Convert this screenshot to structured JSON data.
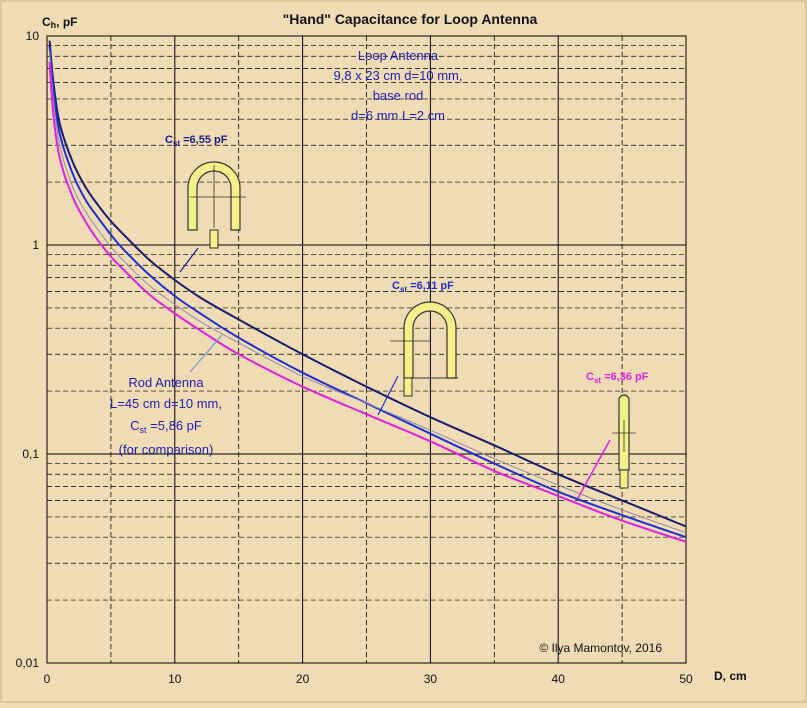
{
  "colors": {
    "background": "#f0dcb4",
    "grid_major": "#000000",
    "grid_minor": "#000000",
    "loop_dark": "#1a1a6e",
    "loop_blue": "#1f2fd0",
    "rod_gray": "#8a8aa8",
    "rod_magenta": "#e020e0",
    "antenna_fill": "#f4ef88",
    "antenna_stroke": "#333333",
    "text_blue": "#2020b0",
    "text_dark": "#111111"
  },
  "chart_data": {
    "type": "line",
    "title": "\"Hand\" Capacitance for  Loop Antenna",
    "ylabel_main": "C",
    "ylabel_sub": "h",
    "ylabel_unit": ", pF",
    "xlabel": "D, cm",
    "xlim": [
      0,
      50
    ],
    "ylim": [
      0.01,
      10
    ],
    "yscale": "log",
    "grid": true,
    "x_ticks": [
      "0",
      "10",
      "20",
      "30",
      "40",
      "50"
    ],
    "x_tick_values": [
      0,
      10,
      20,
      30,
      40,
      50
    ],
    "y_ticks": [
      "0,01",
      "0,1",
      "1",
      "10"
    ],
    "y_tick_values": [
      0.01,
      0.1,
      1,
      10
    ],
    "series": [
      {
        "key": "loop_6_55",
        "color": "#1a1a6e",
        "x": [
          0.2,
          0.5,
          1,
          2,
          3,
          4,
          5,
          6,
          8,
          10,
          12,
          15,
          20,
          25,
          30,
          35,
          40,
          45,
          50
        ],
        "values": [
          9.5,
          6.0,
          3.8,
          2.5,
          1.9,
          1.55,
          1.3,
          1.12,
          0.85,
          0.68,
          0.56,
          0.44,
          0.3,
          0.21,
          0.15,
          0.11,
          0.08,
          0.06,
          0.045
        ]
      },
      {
        "key": "loop_6_11",
        "color": "#1f2fd0",
        "x": [
          0.2,
          0.5,
          1,
          2,
          3,
          4,
          5,
          6,
          8,
          10,
          12,
          15,
          20,
          25,
          30,
          35,
          40,
          45,
          50
        ],
        "values": [
          9.0,
          5.5,
          3.4,
          2.2,
          1.65,
          1.35,
          1.12,
          0.95,
          0.72,
          0.57,
          0.47,
          0.36,
          0.245,
          0.175,
          0.125,
          0.09,
          0.066,
          0.051,
          0.04
        ]
      },
      {
        "key": "rod_thin",
        "color": "#8a8aa8",
        "x": [
          0.2,
          0.5,
          1,
          2,
          3,
          4,
          5,
          6,
          8,
          10,
          12,
          15,
          20,
          25,
          30,
          35,
          40,
          45,
          50
        ],
        "values": [
          8.5,
          5.0,
          3.0,
          1.9,
          1.45,
          1.18,
          0.98,
          0.84,
          0.64,
          0.52,
          0.43,
          0.34,
          0.235,
          0.175,
          0.13,
          0.095,
          0.071,
          0.054,
          0.042
        ]
      },
      {
        "key": "loop_6_36",
        "color": "#e020e0",
        "x": [
          0.2,
          0.5,
          1,
          2,
          3,
          4,
          5,
          6,
          8,
          10,
          12,
          15,
          20,
          25,
          30,
          35,
          40,
          45,
          50
        ],
        "values": [
          7.5,
          4.2,
          2.6,
          1.7,
          1.3,
          1.05,
          0.88,
          0.76,
          0.58,
          0.47,
          0.39,
          0.3,
          0.21,
          0.155,
          0.115,
          0.083,
          0.063,
          0.048,
          0.038
        ]
      }
    ],
    "annotations": {
      "loop_box": [
        "Loop Antenna",
        "9,8 x 23 cm  d=10 mm,",
        "base rod",
        "d=6 mm  L=2 cm"
      ],
      "rod_box": {
        "line1": "Rod Antenna",
        "line2": "L=45 cm  d=10 mm,",
        "line3_main": "C",
        "line3_sub": "st",
        "line3_rest": " =5,86 pF",
        "line4": "(for comparison)"
      },
      "label1": {
        "main": "C",
        "sub": "st",
        "rest": " =6,55 pF"
      },
      "label2": {
        "main": "C",
        "sub": "st",
        "rest": " =6,11 pF"
      },
      "label3": {
        "main": "C",
        "sub": "st",
        "rest": " =6,36 pF"
      },
      "copyright": "© Ilya Mamontov, 2016"
    }
  }
}
